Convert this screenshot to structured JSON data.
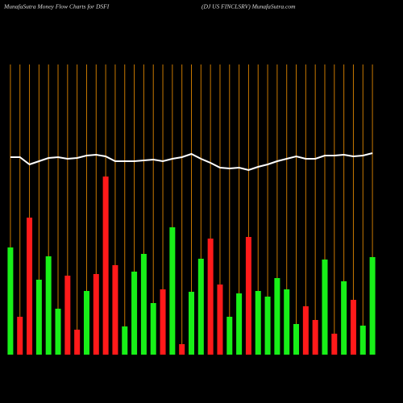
{
  "chart_data": {
    "type": "bar",
    "title": "MunafaSutra  Money Flow  Charts for DSFI",
    "subtitle": "(DJ US FINCLSRV) MunafaSutra.com",
    "ylim": [
      0,
      360
    ],
    "bars": {
      "values": [
        133,
        47,
        170,
        93,
        122,
        57,
        98,
        31,
        79,
        100,
        221,
        111,
        35,
        103,
        125,
        64,
        81,
        158,
        13,
        78,
        119,
        144,
        87,
        47,
        76,
        146,
        79,
        72,
        95,
        81,
        38,
        60,
        43,
        118,
        26,
        91,
        68,
        36,
        121
      ],
      "colors": [
        "#18f018",
        "#ff1a1a",
        "#ff1a1a",
        "#18f018",
        "#18f018",
        "#18f018",
        "#ff1a1a",
        "#ff1a1a",
        "#18f018",
        "#ff1a1a",
        "#ff1a1a",
        "#ff1a1a",
        "#18f018",
        "#18f018",
        "#18f018",
        "#18f018",
        "#ff1a1a",
        "#18f018",
        "#ff1a1a",
        "#18f018",
        "#18f018",
        "#ff1a1a",
        "#ff1a1a",
        "#18f018",
        "#18f018",
        "#ff1a1a",
        "#18f018",
        "#18f018",
        "#18f018",
        "#18f018",
        "#18f018",
        "#ff1a1a",
        "#ff1a1a",
        "#18f018",
        "#ff1a1a",
        "#18f018",
        "#ff1a1a",
        "#18f018",
        "#18f018"
      ]
    },
    "line": {
      "color": "#ffffff",
      "values": [
        245,
        245,
        236,
        240,
        244,
        245,
        243,
        244,
        247,
        248,
        246,
        240,
        240,
        240,
        241,
        242,
        240,
        243,
        245,
        249,
        243,
        238,
        232,
        231,
        232,
        229,
        233,
        236,
        240,
        243,
        246,
        243,
        243,
        247,
        247,
        248,
        246,
        247,
        250
      ]
    },
    "gridline_color": "#c87800"
  }
}
